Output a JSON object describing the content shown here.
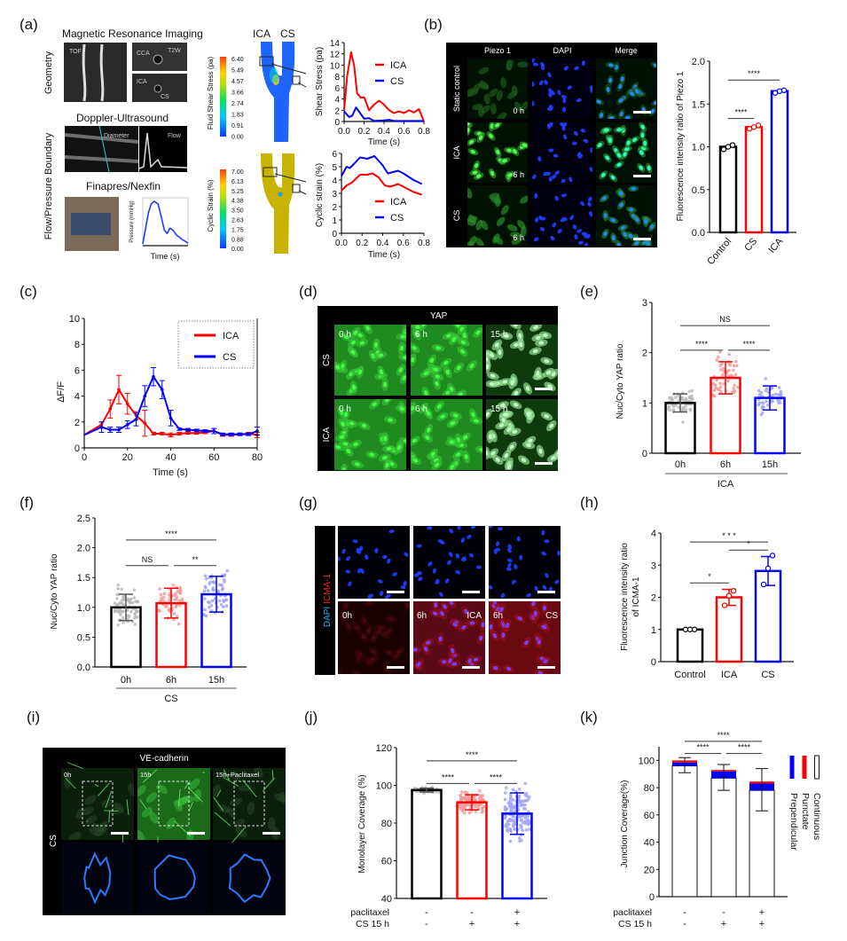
{
  "panel_labels": {
    "a": "(a)",
    "b": "(b)",
    "c": "(c)",
    "d": "(d)",
    "e": "(e)",
    "f": "(f)",
    "g": "(g)",
    "h": "(h)",
    "i": "(i)",
    "j": "(j)",
    "k": "(k)"
  },
  "panel_a": {
    "mri_title": "Magnetic Resonance Imaging",
    "geometry_label": "Geometry",
    "boundary_label": "Flow/Pressure Boundary",
    "doppler_title": "Doppler-Ultrasound",
    "finapres_title": "Finapres/Nexfin",
    "tof": "TOF",
    "cca": "CCA",
    "t2w": "T2W",
    "ica_img": "ICA",
    "cs_img": "CS",
    "diameter": "Diameter",
    "flow": "Flow",
    "model_ica": "ICA",
    "model_cs": "CS",
    "shear_colorbar_title": "Fluid Shear Stress (pa)",
    "shear_colorbar_ticks": [
      "6.40",
      "5.49",
      "4.57",
      "3.66",
      "2.74",
      "1.83",
      "0.91",
      "0.00"
    ],
    "strain_colorbar_title": "Cyclic Strain (%)",
    "strain_colorbar_ticks": [
      "7.00",
      "6.13",
      "5.25",
      "4.38",
      "3.50",
      "2.63",
      "1.75",
      "0.88",
      "0.00"
    ]
  },
  "panel_b": {
    "headers": [
      "Piezo 1",
      "DAPI",
      "Merge"
    ],
    "rows": [
      "Static control",
      "ICA",
      "CS"
    ],
    "times": [
      "0 h",
      "6 h",
      "6 h"
    ]
  },
  "panel_d": {
    "header": "YAP",
    "rows": [
      "CS",
      "ICA"
    ],
    "times": [
      "0 h",
      "6 h",
      "15 h"
    ]
  },
  "panel_g": {
    "stain_dapi": "DAPI",
    "stain_icma": "ICMA-1",
    "time_0": "0h",
    "time_6a": "6h",
    "cond_ica": "ICA",
    "time_6b": "6h",
    "cond_cs": "CS"
  },
  "panel_i": {
    "header": "VE-cadherin",
    "row": "CS",
    "times": [
      "0h",
      "15h",
      "15h+Paclitaxel"
    ]
  },
  "colors": {
    "ICA": "#ff0000",
    "CS": "#0000ff",
    "Control": "#000000"
  },
  "chart_data": [
    {
      "id": "a_shear",
      "type": "line",
      "xlabel": "Time (s)",
      "ylabel": "Shear Stress (pa)",
      "xlim": [
        0,
        0.8
      ],
      "ylim": [
        0,
        14
      ],
      "xticks": [
        "0.0",
        "0.2",
        "0.4",
        "0.6",
        "0.8"
      ],
      "yticks": [
        "0",
        "2",
        "4",
        "6",
        "8",
        "10",
        "12",
        "14"
      ],
      "legend": "right",
      "series": [
        {
          "name": "ICA",
          "color": "#ff0000",
          "x": [
            0,
            0.03,
            0.07,
            0.1,
            0.13,
            0.17,
            0.2,
            0.25,
            0.3,
            0.35,
            0.4,
            0.45,
            0.5,
            0.55,
            0.6,
            0.65,
            0.7,
            0.75,
            0.8
          ],
          "y": [
            2,
            8,
            12.3,
            10,
            5,
            4.2,
            4.3,
            2,
            3,
            3.7,
            3,
            2,
            1.5,
            1.8,
            1.5,
            2,
            1.6,
            2.2,
            0
          ]
        },
        {
          "name": "CS",
          "color": "#0000ff",
          "x": [
            0,
            0.05,
            0.08,
            0.12,
            0.16,
            0.2,
            0.25,
            0.3,
            0.4,
            0.45,
            0.5,
            0.8
          ],
          "y": [
            1.8,
            0.8,
            1,
            2.5,
            1.5,
            0.5,
            0.6,
            0.1,
            0.2,
            0.3,
            0.1,
            0.1
          ]
        }
      ]
    },
    {
      "id": "a_strain",
      "type": "line",
      "xlabel": "Time (s)",
      "ylabel": "Cyclic strain (%)",
      "xlim": [
        0,
        0.8
      ],
      "ylim": [
        0,
        6
      ],
      "xticks": [
        "0.0",
        "0.2",
        "0.4",
        "0.6",
        "0.8"
      ],
      "yticks": [
        "0",
        "1",
        "2",
        "3",
        "4",
        "5",
        "6"
      ],
      "legend": "lower-right",
      "series": [
        {
          "name": "ICA",
          "color": "#ff0000",
          "x": [
            0,
            0.05,
            0.1,
            0.18,
            0.25,
            0.3,
            0.36,
            0.42,
            0.47,
            0.55,
            0.6,
            0.7,
            0.78
          ],
          "y": [
            3.2,
            3.6,
            3.8,
            4.4,
            4.4,
            4.5,
            4.2,
            3.6,
            3.5,
            3.7,
            3.5,
            3.1,
            2.9
          ]
        },
        {
          "name": "CS",
          "color": "#0000ff",
          "x": [
            0,
            0.05,
            0.08,
            0.12,
            0.18,
            0.25,
            0.32,
            0.4,
            0.45,
            0.5,
            0.55,
            0.6,
            0.7,
            0.78
          ],
          "y": [
            4.3,
            5,
            4.9,
            5.2,
            5.7,
            5.6,
            5.8,
            5.1,
            4.5,
            4.6,
            4.7,
            4.5,
            4,
            3.7
          ]
        }
      ]
    },
    {
      "id": "a_pressure",
      "type": "line",
      "xlabel": "Time (s)",
      "ylabel": "Pressure (mmHg)",
      "xlim": [
        0,
        0.8
      ],
      "ylim": [
        70,
        125
      ],
      "series": [
        {
          "color": "#1a3cff",
          "x": [
            0,
            0.05,
            0.1,
            0.15,
            0.2,
            0.27,
            0.32,
            0.38,
            0.43,
            0.48,
            0.53,
            0.6,
            0.7,
            0.8
          ],
          "y": [
            72,
            90,
            108,
            118,
            121,
            118,
            105,
            88,
            84,
            90,
            88,
            82,
            77,
            73
          ]
        }
      ]
    },
    {
      "id": "b",
      "type": "bar",
      "ylabel": "Fluorescence intensity ratio of Piezo 1",
      "categories": [
        "Control",
        "CS",
        "ICA"
      ],
      "values": [
        1.0,
        1.23,
        1.65
      ],
      "points": [
        [
          0.97,
          1.0,
          1.02
        ],
        [
          1.21,
          1.23,
          1.25
        ],
        [
          1.63,
          1.65,
          1.66
        ]
      ],
      "colors": [
        "#000000",
        "#ff0000",
        "#0000ff"
      ],
      "ylim": [
        0,
        2
      ],
      "yticks": [
        "0.0",
        "0.5",
        "1.0",
        "1.5",
        "2.0"
      ],
      "significance": [
        {
          "from": 0,
          "to": 1,
          "label": "****"
        },
        {
          "from": 0,
          "to": 2,
          "label": "****"
        }
      ]
    },
    {
      "id": "c",
      "type": "line",
      "xlabel": "Time (s)",
      "ylabel": "ΔF/F",
      "xlim": [
        0,
        80
      ],
      "ylim": [
        0,
        10
      ],
      "xticks": [
        "0",
        "20",
        "40",
        "60",
        "80"
      ],
      "yticks": [
        "0",
        "2",
        "4",
        "6",
        "8",
        "10"
      ],
      "legend": "top-right",
      "x": [
        0,
        8,
        12,
        16,
        20,
        24,
        28,
        32,
        36,
        40,
        44,
        48,
        52,
        56,
        60,
        64,
        68,
        72,
        76,
        80
      ],
      "series": [
        {
          "name": "ICA",
          "color": "#ff0000",
          "y": [
            1,
            1.8,
            3,
            4.5,
            3.4,
            2.5,
            1.9,
            1.1,
            1.1,
            1.0,
            1.1,
            1.15,
            1.15,
            1.2,
            1.3,
            1.0,
            1.0,
            1.05,
            1.1,
            1.0
          ],
          "err": [
            0,
            0.2,
            0.7,
            1.1,
            0.8,
            0.3,
            1.0,
            0.1,
            0.1,
            0.15,
            0.1,
            0.1,
            0.1,
            0.1,
            0.2,
            0.1,
            0.1,
            0.1,
            0.1,
            0.2
          ]
        },
        {
          "name": "CS",
          "color": "#0000ff",
          "y": [
            1,
            1.6,
            1.4,
            1.4,
            1.8,
            2.2,
            4,
            5.5,
            4.5,
            2.3,
            1.45,
            1.4,
            1.35,
            1.3,
            1.3,
            1.05,
            1.05,
            1.05,
            1.05,
            1.3
          ],
          "err": [
            0,
            0.4,
            0.2,
            0.2,
            0.3,
            0.5,
            0.8,
            0.7,
            0.7,
            0.6,
            0.1,
            0.1,
            0.1,
            0.1,
            0.2,
            0.1,
            0.1,
            0.1,
            0.1,
            0.3
          ]
        }
      ]
    },
    {
      "id": "e",
      "type": "bar",
      "ylabel": "Nuc/Cyto YAP ratio",
      "categories": [
        "0h",
        "6h",
        "15h"
      ],
      "group_label": "ICA",
      "values": [
        1.0,
        1.5,
        1.1
      ],
      "sd": [
        0.18,
        0.32,
        0.24
      ],
      "colors": [
        "#000000",
        "#ff0000",
        "#0000ff"
      ],
      "ylim": [
        0,
        3
      ],
      "yticks": [
        "0",
        "1",
        "2",
        "3"
      ],
      "significance": [
        {
          "from": 0,
          "to": 2,
          "label": "NS"
        },
        {
          "from": 0,
          "to": 1,
          "label": "****"
        },
        {
          "from": 1,
          "to": 2,
          "label": "****"
        }
      ]
    },
    {
      "id": "f",
      "type": "bar",
      "ylabel": "Nuc/Cyto YAP ratio",
      "categories": [
        "0h",
        "6h",
        "15h"
      ],
      "group_label": "CS",
      "values": [
        1.0,
        1.07,
        1.22
      ],
      "sd": [
        0.22,
        0.25,
        0.3
      ],
      "colors": [
        "#000000",
        "#ff0000",
        "#0000ff"
      ],
      "ylim": [
        0,
        2.5
      ],
      "yticks": [
        "0.0",
        "0.5",
        "1.0",
        "1.5",
        "2.0",
        "2.5"
      ],
      "significance": [
        {
          "from": 0,
          "to": 2,
          "label": "****"
        },
        {
          "from": 0,
          "to": 1,
          "label": "NS"
        },
        {
          "from": 1,
          "to": 2,
          "label": "**"
        }
      ]
    },
    {
      "id": "h",
      "type": "bar",
      "ylabel": [
        "Fluorescence intensity ratio",
        "of ICMA-1"
      ],
      "categories": [
        "Control",
        "ICA",
        "CS"
      ],
      "values": [
        1.0,
        2.0,
        2.82
      ],
      "sd": [
        0,
        0.25,
        0.45
      ],
      "points": [
        [
          1,
          1,
          1
        ],
        [
          1.75,
          2.05,
          2.2
        ],
        [
          2.4,
          2.9,
          3.3
        ]
      ],
      "colors": [
        "#000000",
        "#ff0000",
        "#0000ff"
      ],
      "ylim": [
        0,
        4
      ],
      "yticks": [
        "0",
        "1",
        "2",
        "3",
        "4"
      ],
      "significance": [
        {
          "from": 0,
          "to": 2,
          "label": "* * *"
        },
        {
          "from": 1,
          "to": 2,
          "label": "*"
        },
        {
          "from": 0,
          "to": 1,
          "label": "*"
        }
      ]
    },
    {
      "id": "j",
      "type": "bar",
      "ylabel": "Monolayer Coverage (%)",
      "values": [
        97.5,
        91,
        85
      ],
      "sd": [
        1,
        4,
        11
      ],
      "colors": [
        "#000000",
        "#ff0000",
        "#0000ff"
      ],
      "ylim": [
        40,
        120
      ],
      "yticks": [
        "40",
        "60",
        "80",
        "100",
        "120"
      ],
      "conditions": [
        {
          "label": "paclitaxel",
          "signs": [
            "-",
            "-",
            "+"
          ]
        },
        {
          "label": "CS 15 h",
          "signs": [
            "-",
            "+",
            "+"
          ]
        }
      ],
      "significance": [
        {
          "from": 0,
          "to": 2,
          "label": "****"
        },
        {
          "from": 0,
          "to": 1,
          "label": "****"
        },
        {
          "from": 1,
          "to": 2,
          "label": "****"
        }
      ]
    },
    {
      "id": "k",
      "type": "stacked-bar",
      "ylabel": "Junction Coverage(%)",
      "ylim": [
        0,
        110
      ],
      "yticks": [
        "0",
        "20",
        "40",
        "60",
        "80",
        "100"
      ],
      "stacks": [
        {
          "name": "Continuous",
          "color": "#ffffff",
          "values": [
            96,
            87,
            78
          ]
        },
        {
          "name": "Prependicular",
          "color": "#0000ff",
          "values": [
            2.5,
            5,
            5
          ]
        },
        {
          "name": "Punctate",
          "color": "#ff0000",
          "values": [
            1.5,
            1,
            1.5
          ]
        }
      ],
      "error": [
        [
          91,
          102
        ],
        [
          78,
          97
        ],
        [
          63,
          94
        ]
      ],
      "legend": "right",
      "conditions": [
        {
          "label": "paclitaxel",
          "signs": [
            "-",
            "-",
            "+"
          ]
        },
        {
          "label": "CS 15 h",
          "signs": [
            "-",
            "+",
            "+"
          ]
        }
      ],
      "significance": [
        {
          "from": 0,
          "to": 2,
          "label": "****"
        },
        {
          "from": 0,
          "to": 1,
          "label": "****"
        },
        {
          "from": 1,
          "to": 2,
          "label": "****"
        }
      ]
    }
  ]
}
